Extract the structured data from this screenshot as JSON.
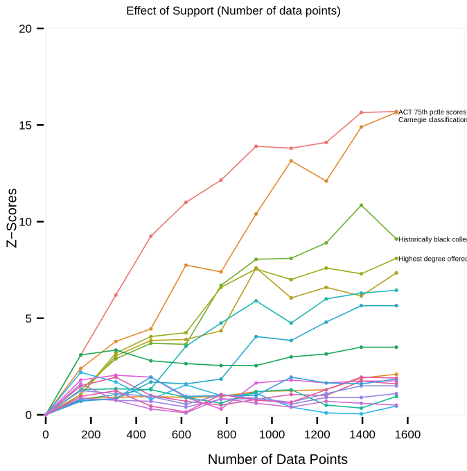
{
  "chart_data": {
    "type": "line",
    "title": "Effect of Support (Number of data points)",
    "xlabel": "Number of Data Points",
    "ylabel": "Z−Scores",
    "xlim": [
      0,
      1850
    ],
    "ylim": [
      0,
      20
    ],
    "x_ticks": [
      0,
      200,
      400,
      600,
      800,
      1000,
      1200,
      1400,
      1600
    ],
    "y_ticks": [
      0,
      5,
      10,
      15,
      20
    ],
    "grid": false,
    "x": [
      0,
      155,
      310,
      465,
      620,
      775,
      930,
      1085,
      1240,
      1395,
      1550
    ],
    "series": [
      {
        "color": "#e8776f",
        "values": [
          0,
          3.1,
          6.2,
          9.25,
          11.0,
          12.15,
          13.9,
          13.8,
          14.1,
          15.65,
          15.7
        ]
      },
      {
        "color": "#e08a2e",
        "values": [
          0,
          2.4,
          3.8,
          4.45,
          7.75,
          7.4,
          10.4,
          13.15,
          12.1,
          14.9,
          15.65
        ]
      },
      {
        "color": "#6fae2d",
        "values": [
          0,
          1.3,
          2.9,
          3.7,
          3.65,
          6.7,
          8.05,
          8.1,
          8.9,
          10.85,
          9.1
        ]
      },
      {
        "color": "#9aab1c",
        "values": [
          0,
          1.05,
          3.2,
          4.05,
          4.25,
          6.6,
          7.55,
          7.0,
          7.6,
          7.3,
          8.1
        ]
      },
      {
        "color": "#b3a120",
        "values": [
          0,
          1.05,
          3.05,
          3.85,
          3.9,
          4.35,
          7.6,
          6.05,
          6.6,
          6.15,
          7.35
        ]
      },
      {
        "color": "#1fb5b0",
        "values": [
          0,
          0.8,
          1.05,
          1.35,
          3.55,
          4.75,
          5.9,
          4.75,
          6.0,
          6.3,
          6.45
        ]
      },
      {
        "color": "#2aa8c6",
        "values": [
          0,
          0.75,
          0.8,
          1.7,
          1.6,
          1.85,
          4.05,
          3.85,
          4.8,
          5.65,
          5.65
        ]
      },
      {
        "color": "#1fa85a",
        "values": [
          0,
          3.1,
          3.35,
          2.8,
          2.65,
          2.55,
          2.55,
          3.0,
          3.15,
          3.5,
          3.5
        ]
      },
      {
        "color": "#29b6e8",
        "values": [
          0,
          2.2,
          1.7,
          0.8,
          1.55,
          1.0,
          1.1,
          0.4,
          0.1,
          0.05,
          0.45
        ]
      },
      {
        "color": "#e88a1e",
        "values": [
          0,
          0.85,
          0.9,
          0.95,
          0.9,
          0.95,
          1.2,
          1.25,
          1.3,
          1.9,
          2.1
        ]
      },
      {
        "color": "#e062d8",
        "values": [
          0,
          1.8,
          2.05,
          1.95,
          0.9,
          0.3,
          1.65,
          1.8,
          1.65,
          1.75,
          1.75
        ]
      },
      {
        "color": "#d65fa3",
        "values": [
          0,
          1.5,
          1.95,
          1.0,
          0.7,
          0.5,
          0.8,
          1.05,
          1.0,
          1.75,
          1.6
        ]
      },
      {
        "color": "#9c7ee8",
        "values": [
          0,
          0.85,
          0.75,
          0.7,
          0.4,
          0.8,
          0.85,
          0.55,
          0.9,
          0.9,
          1.1
        ]
      },
      {
        "color": "#17b897",
        "values": [
          0,
          1.3,
          1.35,
          1.3,
          0.9,
          0.6,
          1.2,
          1.3,
          0.5,
          0.35,
          0.95
        ]
      },
      {
        "color": "#8a8fe0",
        "values": [
          0,
          1.25,
          1.1,
          0.95,
          0.55,
          1.05,
          0.85,
          0.65,
          1.1,
          1.5,
          1.5
        ]
      },
      {
        "color": "#3aa0dc",
        "values": [
          0,
          0.7,
          0.85,
          1.95,
          0.95,
          1.0,
          1.0,
          1.95,
          1.65,
          1.6,
          1.85
        ]
      },
      {
        "color": "#e05aa8",
        "values": [
          0,
          0.95,
          1.25,
          0.45,
          0.15,
          1.05,
          0.75,
          0.65,
          1.3,
          1.95,
          1.9
        ]
      },
      {
        "color": "#c86fd6",
        "values": [
          0,
          1.6,
          0.75,
          0.3,
          0.1,
          0.85,
          0.6,
          0.4,
          0.7,
          0.6,
          0.5
        ]
      }
    ],
    "annotations": [
      {
        "text": "ACT 75th pctle scores",
        "x": 1550,
        "y": 15.7
      },
      {
        "text": "Carnegie classification",
        "x": 1550,
        "y": 15.3
      },
      {
        "text": "Historically black college",
        "x": 1550,
        "y": 9.1
      },
      {
        "text": "Highest degree offered",
        "x": 1550,
        "y": 8.1
      }
    ]
  }
}
